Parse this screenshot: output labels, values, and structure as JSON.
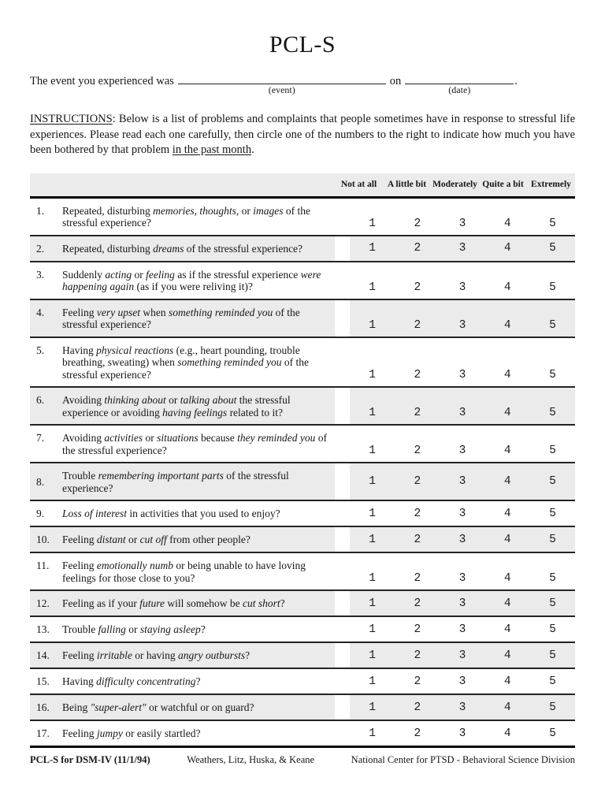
{
  "title": "PCL-S",
  "event_line": {
    "prefix": "The event you experienced was",
    "event_label": "(event)",
    "conj": "on",
    "date_label": "(date)",
    "period": "."
  },
  "instructions": {
    "heading": "INSTRUCTIONS",
    "colon": ":  ",
    "body": "Below is a list of problems and complaints that people sometimes have in response to stressful life experiences.  Please read each one carefully, then circle one of the numbers to the right to indicate how much you have been bothered by that problem ",
    "underlined": "in the past month",
    "suffix": "."
  },
  "table": {
    "columns": [
      "Not at all",
      "A little bit",
      "Moderately",
      "Quite a bit",
      "Extremely"
    ],
    "scale": [
      "1",
      "2",
      "3",
      "4",
      "5"
    ],
    "rows": [
      {
        "num": "1.",
        "shaded": false,
        "align": "end",
        "segments": [
          {
            "t": "Repeated, disturbing "
          },
          {
            "t": "memories, thoughts,",
            "i": true
          },
          {
            "t": " or "
          },
          {
            "t": "images",
            "i": true
          },
          {
            "t": " of the stressful experience?"
          }
        ]
      },
      {
        "num": "2.",
        "shaded": true,
        "align": "center",
        "segments": [
          {
            "t": "Repeated, disturbing "
          },
          {
            "t": "dreams",
            "i": true
          },
          {
            "t": " of the stressful experience?"
          }
        ]
      },
      {
        "num": "3.",
        "shaded": false,
        "align": "end",
        "segments": [
          {
            "t": "Suddenly "
          },
          {
            "t": "acting",
            "i": true
          },
          {
            "t": " or "
          },
          {
            "t": "feeling",
            "i": true
          },
          {
            "t": " as if the stressful experience "
          },
          {
            "t": "were happening again",
            "i": true
          },
          {
            "t": " (as if you were reliving it)?"
          }
        ]
      },
      {
        "num": "4.",
        "shaded": true,
        "align": "end",
        "segments": [
          {
            "t": "Feeling "
          },
          {
            "t": "very upset",
            "i": true
          },
          {
            "t": " when "
          },
          {
            "t": "something reminded you",
            "i": true
          },
          {
            "t": " of the stressful experience?"
          }
        ]
      },
      {
        "num": "5.",
        "shaded": false,
        "align": "end",
        "segments": [
          {
            "t": "Having "
          },
          {
            "t": "physical reactions",
            "i": true
          },
          {
            "t": " (e.g., heart pounding, trouble breathing, sweating) when "
          },
          {
            "t": "something reminded you",
            "i": true
          },
          {
            "t": " of the stressful experience?"
          }
        ]
      },
      {
        "num": "6.",
        "shaded": true,
        "align": "end",
        "segments": [
          {
            "t": "Avoiding "
          },
          {
            "t": "thinking about",
            "i": true
          },
          {
            "t": " or "
          },
          {
            "t": "talking about",
            "i": true
          },
          {
            "t": " the stressful experience or avoiding "
          },
          {
            "t": "having feelings",
            "i": true
          },
          {
            "t": " related to it?"
          }
        ]
      },
      {
        "num": "7.",
        "shaded": false,
        "align": "end",
        "segments": [
          {
            "t": "Avoiding "
          },
          {
            "t": "activities",
            "i": true
          },
          {
            "t": " or "
          },
          {
            "t": "situations",
            "i": true
          },
          {
            "t": " because "
          },
          {
            "t": "they reminded you",
            "i": true
          },
          {
            "t": " of the stressful experience?"
          }
        ]
      },
      {
        "num": "8.",
        "shaded": true,
        "align": "center",
        "segments": [
          {
            "t": "Trouble "
          },
          {
            "t": "remembering important parts",
            "i": true
          },
          {
            "t": " of the stressful experience?"
          }
        ]
      },
      {
        "num": "9.",
        "shaded": false,
        "align": "center",
        "segments": [
          {
            "t": "Loss of interest",
            "i": true
          },
          {
            "t": " in activities that you used to enjoy?"
          }
        ]
      },
      {
        "num": "10.",
        "shaded": true,
        "align": "center",
        "segments": [
          {
            "t": "Feeling "
          },
          {
            "t": "distant",
            "i": true
          },
          {
            "t": " or "
          },
          {
            "t": "cut off",
            "i": true
          },
          {
            "t": " from other people?"
          }
        ]
      },
      {
        "num": "11.",
        "shaded": false,
        "align": "end",
        "segments": [
          {
            "t": "Feeling "
          },
          {
            "t": "emotionally numb",
            "i": true
          },
          {
            "t": " or being unable to have loving feelings for those close to you?"
          }
        ]
      },
      {
        "num": "12.",
        "shaded": true,
        "align": "center",
        "segments": [
          {
            "t": "Feeling as if your "
          },
          {
            "t": "future",
            "i": true
          },
          {
            "t": " will somehow be "
          },
          {
            "t": "cut short",
            "i": true
          },
          {
            "t": "?"
          }
        ]
      },
      {
        "num": "13.",
        "shaded": false,
        "align": "center",
        "segments": [
          {
            "t": "Trouble "
          },
          {
            "t": "falling",
            "i": true
          },
          {
            "t": " or "
          },
          {
            "t": "staying asleep",
            "i": true
          },
          {
            "t": "?"
          }
        ]
      },
      {
        "num": "14.",
        "shaded": true,
        "align": "center",
        "segments": [
          {
            "t": "Feeling "
          },
          {
            "t": "irritable",
            "i": true
          },
          {
            "t": " or having "
          },
          {
            "t": "angry outbursts",
            "i": true
          },
          {
            "t": "?"
          }
        ]
      },
      {
        "num": "15.",
        "shaded": false,
        "align": "center",
        "segments": [
          {
            "t": "Having "
          },
          {
            "t": "difficulty concentrating",
            "i": true
          },
          {
            "t": "?"
          }
        ]
      },
      {
        "num": "16.",
        "shaded": true,
        "align": "center",
        "segments": [
          {
            "t": "Being "
          },
          {
            "t": "\"super-alert\"",
            "i": true
          },
          {
            "t": " or watchful or on guard?"
          }
        ]
      },
      {
        "num": "17.",
        "shaded": false,
        "align": "center",
        "segments": [
          {
            "t": "Feeling "
          },
          {
            "t": "jumpy",
            "i": true
          },
          {
            "t": " or easily startled?"
          }
        ]
      }
    ]
  },
  "footer": {
    "left": "PCL-S for DSM-IV (11/1/94)",
    "center": "Weathers, Litz, Huska, & Keane",
    "right": "National Center for PTSD - Behavioral Science Division"
  },
  "colors": {
    "row_shade": "#ebebeb",
    "rule": "#000000",
    "text": "#161616"
  }
}
